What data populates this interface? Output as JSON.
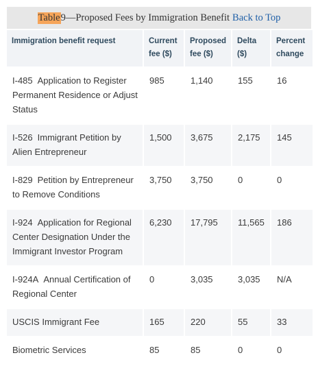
{
  "caption": {
    "highlight": "Table",
    "title_rest": " 9—Proposed Fees by Immigration Benefit",
    "back_link": "Back to Top"
  },
  "table": {
    "headers": [
      "Immigration benefit request",
      "Current fee ($)",
      "Proposed fee ($)",
      "Delta ($)",
      "Percent change"
    ],
    "rows": [
      {
        "code": "I-485",
        "desc": "Application to Register Permanent Residence or Adjust Status",
        "current": "985",
        "proposed": "1,140",
        "delta": "155",
        "percent": "16"
      },
      {
        "code": "I-526",
        "desc": "Immigrant Petition by Alien Entrepreneur",
        "current": "1,500",
        "proposed": "3,675",
        "delta": "2,175",
        "percent": "145"
      },
      {
        "code": "I-829",
        "desc": "Petition by Entrepreneur to Remove Conditions",
        "current": "3,750",
        "proposed": "3,750",
        "delta": "0",
        "percent": "0"
      },
      {
        "code": "I-924",
        "desc": "Application for Regional Center Designation Under the Immigrant Investor Program",
        "current": "6,230",
        "proposed": "17,795",
        "delta": "11,565",
        "percent": "186"
      },
      {
        "code": "I-924A",
        "desc": "Annual Certification of Regional Center",
        "current": "0",
        "proposed": "3,035",
        "delta": "3,035",
        "percent": "N/A"
      },
      {
        "code": "",
        "desc": "USCIS Immigrant Fee",
        "current": "165",
        "proposed": "220",
        "delta": "55",
        "percent": "33"
      },
      {
        "code": "",
        "desc": "Biometric Services",
        "current": "85",
        "proposed": "85",
        "delta": "0",
        "percent": "0"
      }
    ]
  }
}
